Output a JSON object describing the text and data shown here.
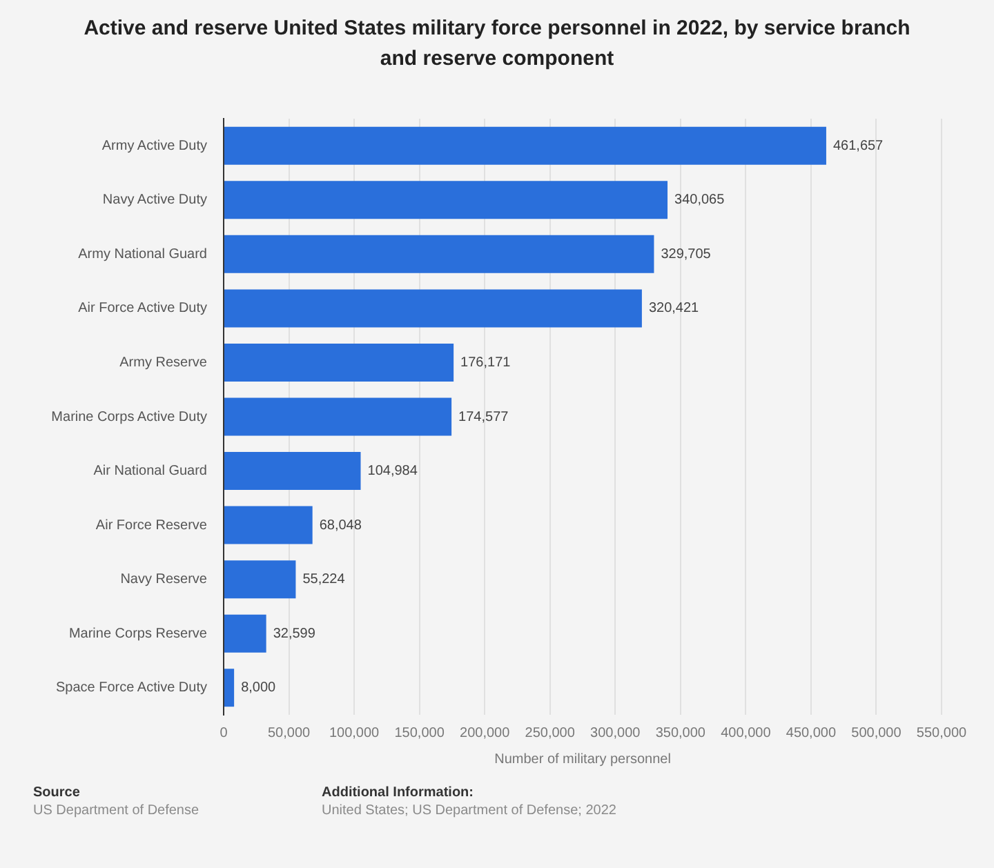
{
  "chart_data": {
    "type": "bar",
    "orientation": "horizontal",
    "title": "Active and reserve United States military force personnel in 2022, by service branch and reserve component",
    "xlabel": "Number of military personnel",
    "categories": [
      "Army Active Duty",
      "Navy Active Duty",
      "Army National Guard",
      "Air Force Active Duty",
      "Army Reserve",
      "Marine Corps Active Duty",
      "Air National Guard",
      "Air Force Reserve",
      "Navy Reserve",
      "Marine Corps Reserve",
      "Space Force Active Duty"
    ],
    "values": [
      461657,
      340065,
      329705,
      320421,
      176171,
      174577,
      104984,
      68048,
      55224,
      32599,
      8000
    ],
    "value_labels": [
      "461,657",
      "340,065",
      "329,705",
      "320,421",
      "176,171",
      "174,577",
      "104,984",
      "68,048",
      "55,224",
      "32,599",
      "8,000"
    ],
    "color": "#2a6fdb",
    "xlim": [
      0,
      550000
    ],
    "xticks": [
      0,
      {
        "value": 50000,
        "label": "50,000"
      },
      {
        "value": 100000,
        "label": "100,000"
      },
      {
        "value": 150000,
        "label": "150,000"
      },
      {
        "value": 200000,
        "label": "200,000"
      },
      {
        "value": 250000,
        "label": "250,000"
      },
      {
        "value": 300000,
        "label": "300,000"
      },
      {
        "value": 350000,
        "label": "350,000"
      },
      {
        "value": 400000,
        "label": "400,000"
      },
      {
        "value": 450000,
        "label": "450,000"
      },
      {
        "value": 500000,
        "label": "500,000"
      },
      {
        "value": 550000,
        "label": "550,000"
      }
    ],
    "grid": "x",
    "annotations": [
      "Source",
      "US Department of Defense",
      "Additional Information:",
      "United States; US Department of Defense; 2022"
    ]
  }
}
